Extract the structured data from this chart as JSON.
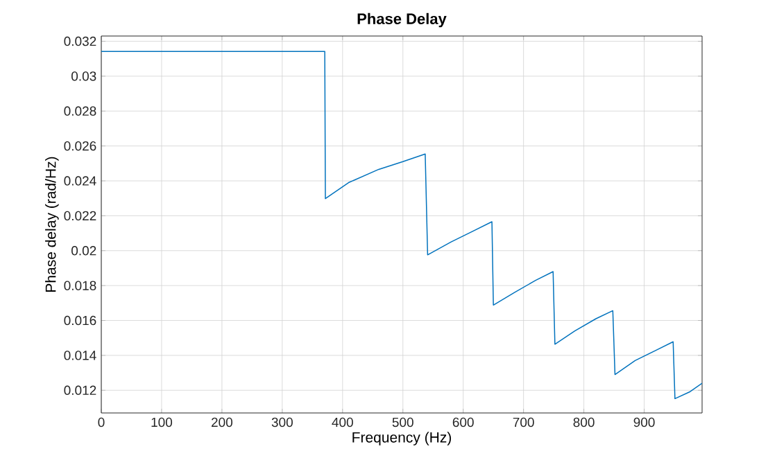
{
  "chart_data": {
    "type": "line",
    "title": "Phase Delay",
    "xlabel": "Frequency (Hz)",
    "ylabel": "Phase delay (rad/Hz)",
    "x": [
      0,
      370.5,
      371.5,
      410,
      460,
      500,
      537,
      541,
      580,
      615,
      647.6,
      650,
      685,
      720,
      749,
      752,
      785,
      820,
      848,
      851.6,
      885,
      920,
      948,
      951,
      975,
      996
    ],
    "values": [
      0.03142,
      0.03142,
      0.02298,
      0.0239,
      0.02466,
      0.0251,
      0.02554,
      0.01976,
      0.0205,
      0.0211,
      0.02166,
      0.01688,
      0.0176,
      0.0183,
      0.0188,
      0.01464,
      0.0154,
      0.0161,
      0.01656,
      0.0129,
      0.0137,
      0.0143,
      0.01478,
      0.01152,
      0.0119,
      0.0124
    ],
    "color": "#0072bd",
    "xlim": [
      0,
      996
    ],
    "ylim": [
      0.0107,
      0.0323
    ],
    "xticks": [
      0,
      100,
      200,
      300,
      400,
      500,
      600,
      700,
      800,
      900
    ],
    "yticks": [
      0.012,
      0.014,
      0.016,
      0.018,
      0.02,
      0.022,
      0.024,
      0.026,
      0.028,
      0.03,
      0.032
    ],
    "grid": true,
    "marker": "none",
    "line_style": "solid"
  }
}
